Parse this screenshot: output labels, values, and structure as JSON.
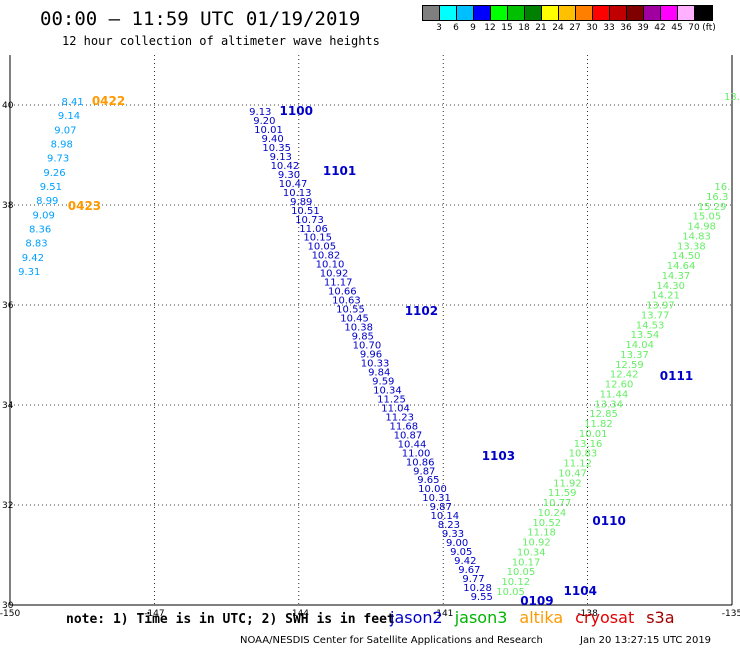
{
  "header": {
    "title": "00:00 – 11:59 UTC 01/19/2019",
    "subtitle": "12 hour collection of altimeter wave heights"
  },
  "legend": {
    "unit": "(ft)",
    "bins": [
      {
        "label": "3",
        "color": "#7f7f7f"
      },
      {
        "label": "6",
        "color": "#00ffff"
      },
      {
        "label": "9",
        "color": "#00bfff"
      },
      {
        "label": "12",
        "color": "#0000ff"
      },
      {
        "label": "15",
        "color": "#00ff00"
      },
      {
        "label": "18",
        "color": "#00c000"
      },
      {
        "label": "21",
        "color": "#008000"
      },
      {
        "label": "24",
        "color": "#ffff00"
      },
      {
        "label": "27",
        "color": "#ffc000"
      },
      {
        "label": "30",
        "color": "#ff8000"
      },
      {
        "label": "33",
        "color": "#ff0000"
      },
      {
        "label": "36",
        "color": "#c00000"
      },
      {
        "label": "39",
        "color": "#800000"
      },
      {
        "label": "42",
        "color": "#a000a0"
      },
      {
        "label": "45",
        "color": "#ff00ff"
      },
      {
        "label": "70",
        "color": "#ffb0ff"
      },
      {
        "label": "",
        "color": "#000000"
      }
    ]
  },
  "map": {
    "lon_range": [
      -150,
      -135
    ],
    "lat_range": [
      30,
      41
    ],
    "lon_ticks": [
      "-150",
      "-147",
      "-144",
      "-141",
      "-138",
      "-135"
    ],
    "lat_ticks": [
      "30",
      "32",
      "34",
      "36",
      "38",
      "40"
    ],
    "gridlines": true,
    "colors": {
      "jason2": "#0000c8",
      "jason3": "#00b400",
      "altika": "#ff9900",
      "cryosat": "#e00000",
      "s3a": "#a00000",
      "altika_light": "#00a0ff",
      "jason3_light": "#66ee66"
    },
    "tracks": [
      {
        "id": "t1",
        "color": "altika_light",
        "lon": -148.7,
        "lat": 40.0,
        "values": [
          "8.41",
          "9.14",
          "9.07",
          "8.98",
          "9.73",
          "9.26",
          "9.51",
          "8.99",
          "9.09",
          "8.36",
          "8.83",
          "9.42",
          "9.31"
        ],
        "lat_end": 36.6,
        "lon_end": -149.6
      },
      {
        "id": "t2",
        "color": "jason2",
        "lon": -144.8,
        "lat": 39.8,
        "values": [
          "9.13",
          "9.20",
          "10.01",
          "9.40",
          "10.35",
          "9.13",
          "10.42",
          "9.30",
          "10.47",
          "10.13",
          "9.89",
          "10.51",
          "10.73",
          "11.06",
          "10.15",
          "10.05",
          "10.82",
          "10.10",
          "10.92",
          "11.17",
          "10.66",
          "10.63",
          "10.55",
          "10.45",
          "10.38",
          "9.85",
          "10.70",
          "9.96",
          "10.33",
          "9.84",
          "9.59",
          "10.34",
          "11.25",
          "11.04",
          "11.23",
          "11.68",
          "10.87",
          "10.44",
          "11.00",
          "10.86",
          "9.87",
          "9.65",
          "10.00",
          "10.31",
          "9.87",
          "10.14",
          "8.23",
          "9.33",
          "9.00",
          "9.05",
          "9.42",
          "9.67",
          "9.77",
          "10.28",
          "9.55"
        ],
        "lat_end": 30.1,
        "lon_end": -140.2
      },
      {
        "id": "t3",
        "color": "jason3_light",
        "lon": -135.2,
        "lat": 38.3,
        "values": [
          "16.",
          "16.3",
          "15.29",
          "15.05",
          "14.98",
          "14.83",
          "13.38",
          "14.50",
          "14.64",
          "14.37",
          "14.30",
          "14.21",
          "13.97",
          "13.77",
          "14.53",
          "13.54",
          "14.04",
          "13.37",
          "12.59",
          "12.42",
          "12.60",
          "11.44",
          "13.34",
          "12.85",
          "11.82",
          "10.01",
          "13.16",
          "10.83",
          "11.12",
          "10.47",
          "11.92",
          "11.59",
          "10.77",
          "10.24",
          "10.52",
          "11.18",
          "10.92",
          "10.34",
          "10.17",
          "10.05",
          "10.12",
          "10.05"
        ],
        "lat_end": 30.2,
        "lon_end": -139.6
      },
      {
        "id": "t4",
        "color": "jason3_light",
        "lon": -135.0,
        "lat": 40.1,
        "values": [
          "13."
        ],
        "lat_end": 40.1,
        "lon_end": -135.0
      }
    ],
    "pass_labels": [
      {
        "text": "0422",
        "color": "altika",
        "lon": -148.3,
        "lat": 40.0
      },
      {
        "text": "0423",
        "color": "altika",
        "lon": -148.8,
        "lat": 37.9
      },
      {
        "text": "1100",
        "color": "jason2",
        "lon": -144.4,
        "lat": 39.8
      },
      {
        "text": "1101",
        "color": "jason2",
        "lon": -143.5,
        "lat": 38.6
      },
      {
        "text": "1102",
        "color": "jason2",
        "lon": -141.8,
        "lat": 35.8
      },
      {
        "text": "1103",
        "color": "jason2",
        "lon": -140.2,
        "lat": 32.9
      },
      {
        "text": "0110",
        "color": "jason2",
        "lon": -137.9,
        "lat": 31.6
      },
      {
        "text": "0111",
        "color": "jason2",
        "lon": -136.5,
        "lat": 34.5
      },
      {
        "text": "1104",
        "color": "jason2",
        "lon": -138.5,
        "lat": 30.2
      },
      {
        "text": "0109",
        "color": "jason2",
        "lon": -139.4,
        "lat": 30.0
      }
    ]
  },
  "footer": {
    "note": "note:  1) Time is in UTC; 2) SWH is in feet",
    "satellites": [
      {
        "name": "jason2",
        "color": "#0000c8"
      },
      {
        "name": "jason3",
        "color": "#00b400"
      },
      {
        "name": "altika",
        "color": "#ff9900"
      },
      {
        "name": "cryosat",
        "color": "#e00000"
      },
      {
        "name": "s3a",
        "color": "#a00000"
      }
    ],
    "credit": "NOAA/NESDIS Center for Satellite Applications and Research",
    "timestamp": "Jan 20 13:27:15 UTC 2019"
  }
}
